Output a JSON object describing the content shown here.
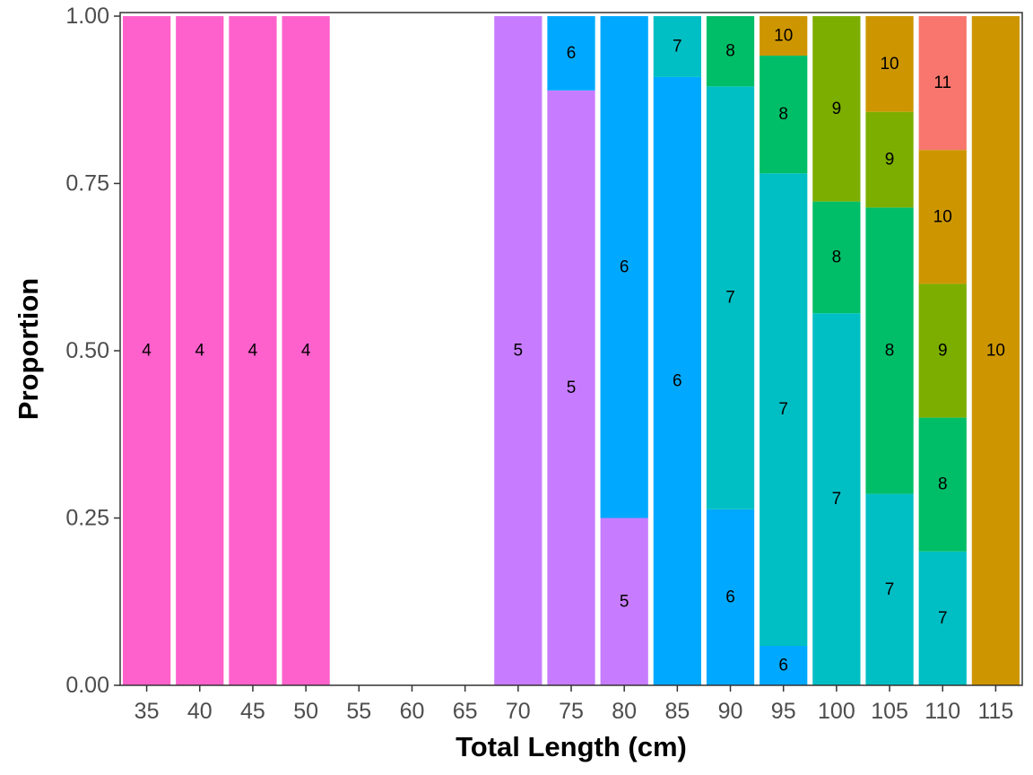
{
  "chart_data": {
    "type": "bar",
    "stacked": true,
    "title": "",
    "xlabel": "Total Length (cm)",
    "ylabel": "Proportion",
    "ylim": [
      0,
      1
    ],
    "y_ticks": [
      "0.00",
      "0.25",
      "0.50",
      "0.75",
      "1.00"
    ],
    "grid": false,
    "legend": "none",
    "categories": [
      "35",
      "40",
      "45",
      "50",
      "55",
      "60",
      "65",
      "70",
      "75",
      "80",
      "85",
      "90",
      "95",
      "100",
      "105",
      "110",
      "115"
    ],
    "age_colors": {
      "4": "#FF61CC",
      "5": "#C77CFF",
      "6": "#00A9FF",
      "7": "#00BFC4",
      "8": "#00BE67",
      "9": "#7CAE00",
      "10": "#CD9600",
      "11": "#F8766D"
    },
    "bars": [
      {
        "x": "35",
        "segments": [
          {
            "label": "4",
            "value": 1.0
          }
        ]
      },
      {
        "x": "40",
        "segments": [
          {
            "label": "4",
            "value": 1.0
          }
        ]
      },
      {
        "x": "45",
        "segments": [
          {
            "label": "4",
            "value": 1.0
          }
        ]
      },
      {
        "x": "50",
        "segments": [
          {
            "label": "4",
            "value": 1.0
          }
        ]
      },
      {
        "x": "55",
        "segments": []
      },
      {
        "x": "60",
        "segments": []
      },
      {
        "x": "65",
        "segments": []
      },
      {
        "x": "70",
        "segments": [
          {
            "label": "5",
            "value": 1.0
          }
        ]
      },
      {
        "x": "75",
        "segments": [
          {
            "label": "5",
            "value": 0.889
          },
          {
            "label": "6",
            "value": 0.111
          }
        ]
      },
      {
        "x": "80",
        "segments": [
          {
            "label": "5",
            "value": 0.25
          },
          {
            "label": "6",
            "value": 0.75
          }
        ]
      },
      {
        "x": "85",
        "segments": [
          {
            "label": "6",
            "value": 0.909
          },
          {
            "label": "7",
            "value": 0.091
          }
        ]
      },
      {
        "x": "90",
        "segments": [
          {
            "label": "6",
            "value": 0.263
          },
          {
            "label": "7",
            "value": 0.632
          },
          {
            "label": "8",
            "value": 0.105
          }
        ]
      },
      {
        "x": "95",
        "segments": [
          {
            "label": "6",
            "value": 0.059
          },
          {
            "label": "7",
            "value": 0.706
          },
          {
            "label": "8",
            "value": 0.176
          },
          {
            "label": "10",
            "value": 0.059
          }
        ]
      },
      {
        "x": "100",
        "segments": [
          {
            "label": "7",
            "value": 0.556
          },
          {
            "label": "8",
            "value": 0.167
          },
          {
            "label": "9",
            "value": 0.277
          }
        ]
      },
      {
        "x": "105",
        "segments": [
          {
            "label": "7",
            "value": 0.286
          },
          {
            "label": "8",
            "value": 0.428
          },
          {
            "label": "9",
            "value": 0.143
          },
          {
            "label": "10",
            "value": 0.143
          }
        ]
      },
      {
        "x": "110",
        "segments": [
          {
            "label": "7",
            "value": 0.2
          },
          {
            "label": "8",
            "value": 0.2
          },
          {
            "label": "9",
            "value": 0.2
          },
          {
            "label": "10",
            "value": 0.2
          },
          {
            "label": "11",
            "value": 0.2
          }
        ]
      },
      {
        "x": "115",
        "segments": [
          {
            "label": "10",
            "value": 1.0
          }
        ]
      }
    ]
  }
}
